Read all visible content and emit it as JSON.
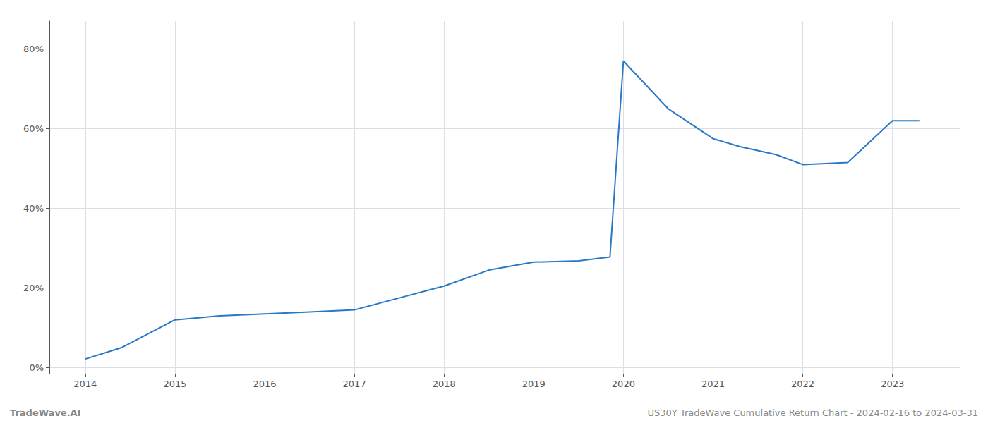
{
  "chart_data": {
    "type": "line",
    "x": [
      2014.0,
      2014.4,
      2015.0,
      2015.5,
      2016.0,
      2016.5,
      2017.0,
      2017.5,
      2018.0,
      2018.5,
      2019.0,
      2019.5,
      2019.85,
      2020.0,
      2020.5,
      2021.0,
      2021.3,
      2021.7,
      2022.0,
      2022.5,
      2023.0,
      2023.3
    ],
    "values": [
      0.022,
      0.05,
      0.12,
      0.13,
      0.135,
      0.14,
      0.145,
      0.175,
      0.205,
      0.245,
      0.265,
      0.268,
      0.278,
      0.77,
      0.65,
      0.575,
      0.555,
      0.535,
      0.51,
      0.515,
      0.62,
      0.62
    ],
    "color": "#2878c8",
    "xlim": [
      2013.6,
      2023.75
    ],
    "xticks": [
      2014,
      2015,
      2016,
      2017,
      2018,
      2019,
      2020,
      2021,
      2022,
      2023
    ],
    "ylim": [
      -0.015,
      0.87
    ],
    "yticks": [
      {
        "value": 0.0,
        "label": "0%"
      },
      {
        "value": 0.2,
        "label": "20%"
      },
      {
        "value": 0.4,
        "label": "40%"
      },
      {
        "value": 0.6,
        "label": "60%"
      },
      {
        "value": 0.8,
        "label": "80%"
      }
    ],
    "grid": true,
    "annotations": [
      "TradeWave.AI",
      "US30Y TradeWave Cumulative Return Chart - 2024-02-16 to 2024-03-31"
    ]
  }
}
